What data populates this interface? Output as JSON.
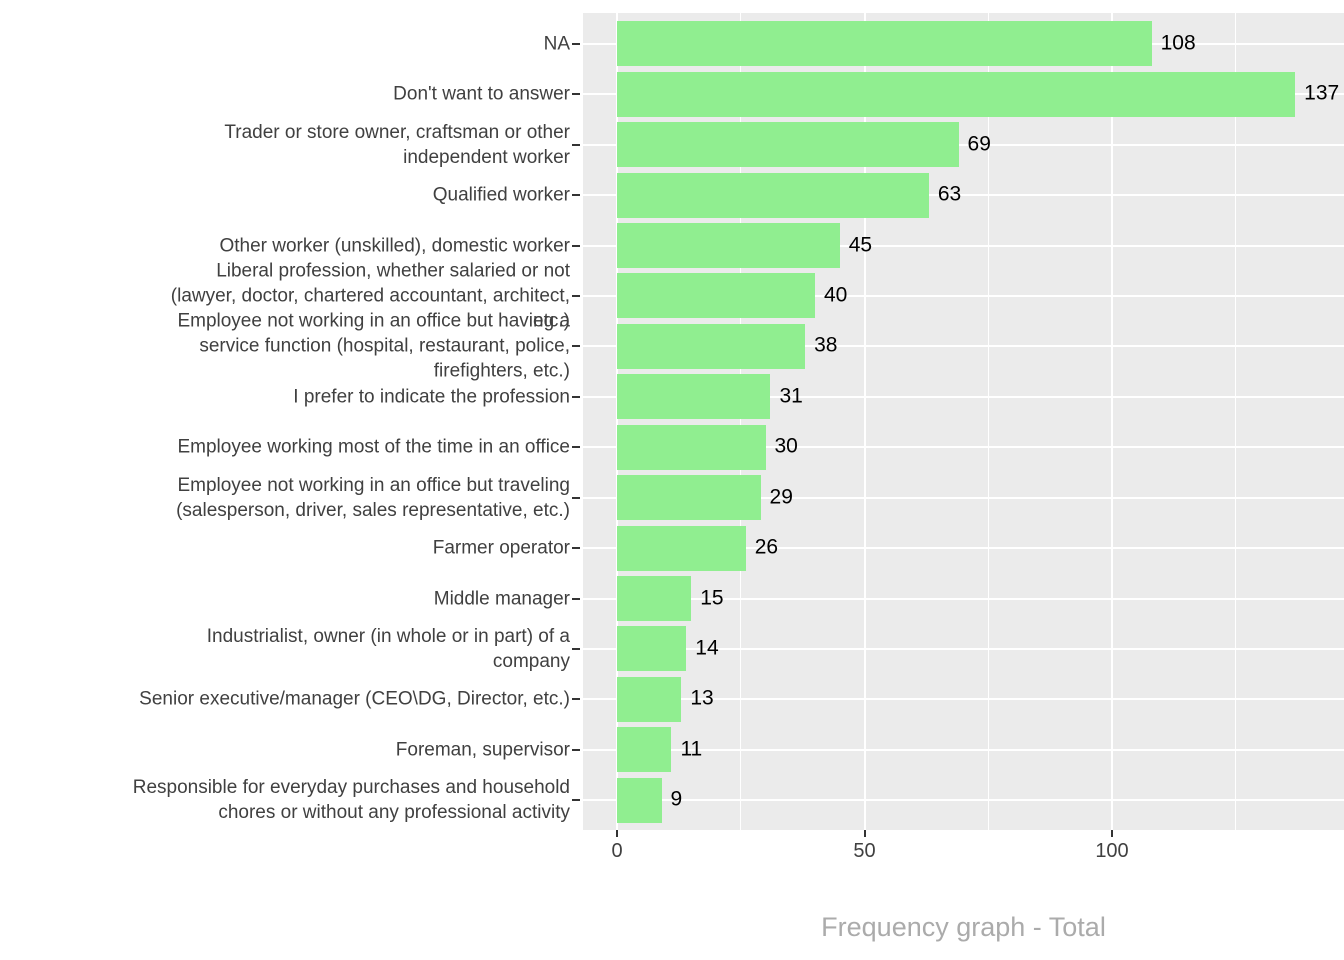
{
  "chart_data": {
    "type": "bar",
    "orientation": "horizontal",
    "title": "",
    "xlabel": "Frequency graph - Total",
    "ylabel": "",
    "categories": [
      "NA",
      "Don't want to answer",
      "Trader or store owner, craftsman or other\nindependent worker",
      "Qualified worker",
      "Other worker (unskilled), domestic worker",
      "Liberal profession, whether salaried or not\n(lawyer, doctor, chartered accountant, architect,\netc.)",
      "Employee not working in an office but having a\nservice function (hospital, restaurant, police,\nfirefighters, etc.)",
      "I prefer to indicate the profession",
      "Employee working most of the time in an office",
      "Employee not working in an office but traveling\n(salesperson, driver, sales representative, etc.)",
      "Farmer operator",
      "Middle manager",
      "Industrialist, owner (in whole or in part) of a\ncompany",
      "Senior executive/manager (CEO\\DG, Director, etc.)",
      "Foreman, supervisor",
      "Responsible for everyday purchases and household\nchores or without any professional activity"
    ],
    "values": [
      108,
      137,
      69,
      63,
      45,
      40,
      38,
      31,
      30,
      29,
      26,
      15,
      14,
      13,
      11,
      9
    ],
    "x_ticks": [
      0,
      50,
      100
    ],
    "x_minor_gridlines": [
      25,
      75,
      125
    ],
    "xlim": [
      0,
      147
    ],
    "grid": true,
    "legend": "none",
    "colors": {
      "bar": "#90EE90",
      "panel": "#EBEBEB",
      "grid": "#FFFFFF",
      "axis_text": "#404040",
      "value_label": "#000000",
      "axis_title": "#ABABAB",
      "tick_mark": "#333333"
    }
  }
}
